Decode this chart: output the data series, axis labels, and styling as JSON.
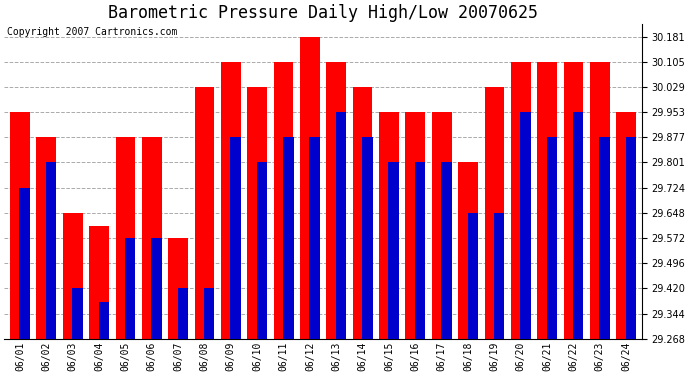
{
  "title": "Barometric Pressure Daily High/Low 20070625",
  "copyright": "Copyright 2007 Cartronics.com",
  "dates": [
    "06/01",
    "06/02",
    "06/03",
    "06/04",
    "06/05",
    "06/06",
    "06/07",
    "06/08",
    "06/09",
    "06/10",
    "06/11",
    "06/12",
    "06/13",
    "06/14",
    "06/15",
    "06/16",
    "06/17",
    "06/18",
    "06/19",
    "06/20",
    "06/21",
    "06/22",
    "06/23",
    "06/24"
  ],
  "highs": [
    29.953,
    29.877,
    29.648,
    29.61,
    29.877,
    29.877,
    29.572,
    30.029,
    30.105,
    30.029,
    30.105,
    30.181,
    30.105,
    30.029,
    29.953,
    29.953,
    29.953,
    29.801,
    30.029,
    30.105,
    30.105,
    30.105,
    30.105,
    29.953
  ],
  "lows": [
    29.724,
    29.801,
    29.42,
    29.38,
    29.572,
    29.572,
    29.42,
    29.42,
    29.877,
    29.801,
    29.877,
    29.877,
    29.953,
    29.877,
    29.801,
    29.801,
    29.801,
    29.648,
    29.648,
    29.953,
    29.877,
    29.953,
    29.877,
    29.877
  ],
  "high_color": "#ff0000",
  "low_color": "#0000cc",
  "background_color": "#ffffff",
  "grid_color": "#aaaaaa",
  "yticks": [
    29.268,
    29.344,
    29.42,
    29.496,
    29.572,
    29.648,
    29.724,
    29.801,
    29.877,
    29.953,
    30.029,
    30.105,
    30.181
  ],
  "ymin": 29.268,
  "ymax": 30.22,
  "title_fontsize": 12,
  "copyright_fontsize": 7,
  "tick_fontsize": 7,
  "ytick_fontsize": 7
}
